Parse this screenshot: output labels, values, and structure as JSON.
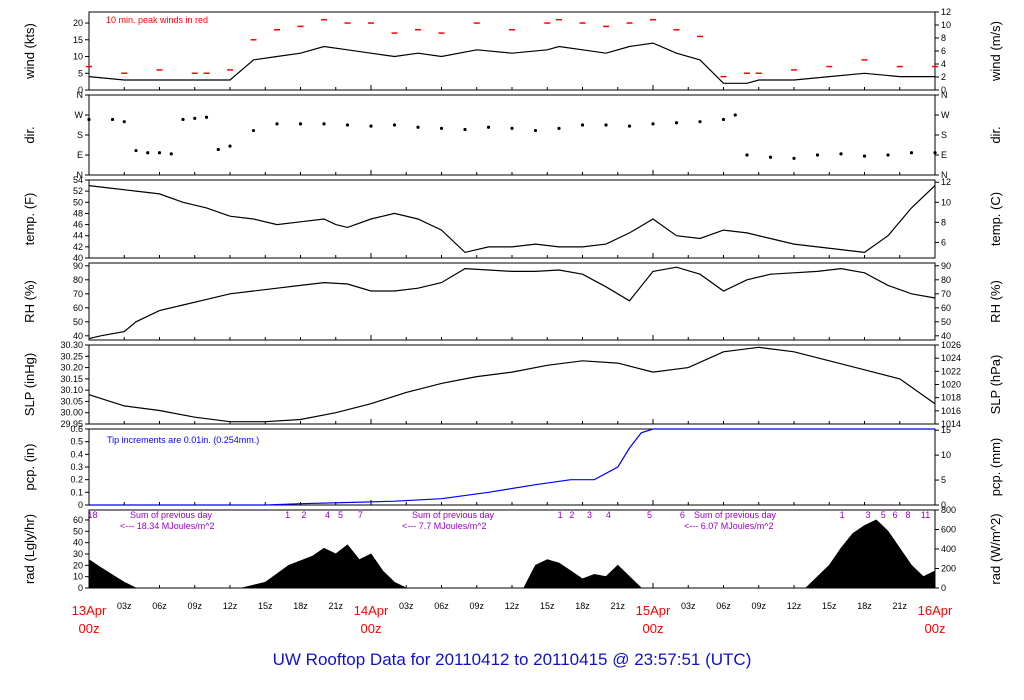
{
  "title": "UW Rooftop Data for 20110412  to  20110415 @ 23:57:51  (UTC)",
  "colors": {
    "line": "#000000",
    "peak": "#ff0000",
    "precip": "#0000ff",
    "annotation": "#9900cc",
    "date": "#ff0000",
    "title": "#1010cc"
  },
  "chart_data": [
    {
      "id": "wind",
      "type": "line",
      "ylabel_left": "wind (kts)",
      "ylabel_right": "wind (m/s)",
      "ylim_left": [
        0,
        23.3
      ],
      "yticks_left": [
        0,
        5,
        10,
        15,
        20
      ],
      "ylim_right": [
        0,
        12
      ],
      "yticks_right": [
        0,
        2,
        4,
        6,
        8,
        10,
        12
      ],
      "annotation": "10 min. peak winds in red",
      "series": [
        {
          "name": "10 min. peak winds",
          "color": "#ff0000",
          "x": [
            0,
            3,
            6,
            9,
            10,
            12,
            14,
            16,
            18,
            20,
            22,
            24,
            26,
            28,
            30,
            33,
            36,
            39,
            40,
            42,
            44,
            46,
            48,
            50,
            52,
            54,
            56,
            57,
            60,
            63,
            66,
            69,
            72
          ],
          "y": [
            7,
            5,
            6,
            5,
            5,
            6,
            15,
            18,
            19,
            21,
            20,
            20,
            17,
            18,
            17,
            20,
            18,
            20,
            21,
            20,
            19,
            20,
            21,
            18,
            16,
            4,
            5,
            5,
            6,
            7,
            9,
            7,
            7
          ]
        },
        {
          "name": "wind",
          "color": "#000000",
          "x": [
            0,
            3,
            6,
            9,
            10,
            12,
            14,
            16,
            18,
            20,
            22,
            24,
            26,
            28,
            30,
            33,
            36,
            39,
            40,
            42,
            44,
            46,
            48,
            50,
            52,
            54,
            56,
            57,
            60,
            63,
            66,
            69,
            72
          ],
          "y": [
            4,
            3,
            3,
            3,
            3,
            3,
            9,
            10,
            11,
            13,
            12,
            11,
            10,
            11,
            10,
            12,
            11,
            12,
            13,
            12,
            11,
            13,
            14,
            11,
            9,
            2,
            2,
            3,
            3,
            4,
            5,
            4,
            4
          ]
        }
      ]
    },
    {
      "id": "dir",
      "type": "scatter",
      "ylabel_left": "dir.",
      "ylabel_right": "dir.",
      "yticks": [
        "N",
        "E",
        "S",
        "W",
        "N"
      ],
      "x": [
        0,
        2,
        3,
        4,
        5,
        6,
        7,
        8,
        9,
        10,
        11,
        12,
        14,
        16,
        18,
        20,
        22,
        24,
        26,
        28,
        30,
        32,
        34,
        36,
        38,
        40,
        42,
        44,
        46,
        48,
        50,
        52,
        54,
        55,
        56,
        58,
        60,
        62,
        64,
        66,
        68,
        70,
        72
      ],
      "y": [
        250,
        250,
        240,
        110,
        100,
        100,
        95,
        250,
        255,
        260,
        115,
        130,
        200,
        230,
        230,
        230,
        225,
        220,
        225,
        215,
        210,
        205,
        215,
        210,
        200,
        210,
        225,
        225,
        220,
        230,
        235,
        240,
        250,
        270,
        90,
        80,
        75,
        90,
        95,
        85,
        90,
        100,
        100
      ]
    },
    {
      "id": "temp",
      "type": "line",
      "ylabel_left": "temp. (F)",
      "ylabel_right": "temp. (C)",
      "ylim_left": [
        40,
        54
      ],
      "yticks_left": [
        40,
        42,
        44,
        46,
        48,
        50,
        52,
        54
      ],
      "ylim_right": [
        4.444,
        12.222
      ],
      "yticks_right": [
        6,
        8,
        10,
        12
      ],
      "x": [
        0,
        2,
        4,
        6,
        8,
        10,
        12,
        14,
        16,
        18,
        20,
        21,
        22,
        24,
        26,
        28,
        30,
        32,
        34,
        36,
        38,
        40,
        42,
        44,
        46,
        48,
        50,
        52,
        54,
        56,
        58,
        60,
        62,
        64,
        66,
        68,
        70,
        72
      ],
      "y": [
        53,
        52.5,
        52,
        51.5,
        50,
        49,
        47.5,
        47,
        46,
        46.5,
        47,
        46,
        45.5,
        47,
        48,
        47,
        45,
        41,
        42,
        42,
        42.5,
        42,
        42,
        42.5,
        44.5,
        47,
        44,
        43.5,
        45,
        44.5,
        43.5,
        42.5,
        42,
        41.5,
        41,
        44,
        49,
        53
      ]
    },
    {
      "id": "rh",
      "type": "line",
      "ylabel_left": "RH (%)",
      "ylabel_right": "RH (%)",
      "ylim": [
        37,
        92
      ],
      "yticks": [
        40,
        50,
        60,
        70,
        80,
        90
      ],
      "x": [
        0,
        1,
        3,
        4,
        6,
        8,
        10,
        12,
        14,
        16,
        18,
        20,
        22,
        24,
        26,
        28,
        30,
        32,
        34,
        36,
        38,
        40,
        42,
        44,
        46,
        48,
        50,
        52,
        54,
        56,
        58,
        60,
        62,
        64,
        66,
        68,
        70,
        72
      ],
      "y": [
        38,
        40,
        43,
        50,
        58,
        62,
        66,
        70,
        72,
        74,
        76,
        78,
        77,
        72,
        72,
        74,
        78,
        88,
        87,
        86,
        86,
        87,
        84,
        75,
        65,
        86,
        89,
        84,
        72,
        80,
        84,
        85,
        86,
        88,
        85,
        76,
        70,
        67
      ]
    },
    {
      "id": "slp",
      "type": "line",
      "ylabel_left": "SLP (inHg)",
      "ylabel_right": "SLP (hPa)",
      "ylim_left": [
        29.95,
        30.3
      ],
      "yticks_left": [
        29.95,
        30.0,
        30.05,
        30.1,
        30.15,
        30.2,
        30.25,
        30.3
      ],
      "ylim_right": [
        1014,
        1026
      ],
      "yticks_right": [
        1014,
        1016,
        1018,
        1020,
        1022,
        1024,
        1026
      ],
      "x": [
        0,
        3,
        6,
        9,
        12,
        15,
        18,
        21,
        24,
        27,
        30,
        33,
        36,
        39,
        42,
        45,
        48,
        51,
        54,
        57,
        60,
        63,
        66,
        69,
        72
      ],
      "y": [
        30.08,
        30.03,
        30.01,
        29.98,
        29.96,
        29.96,
        29.97,
        30.0,
        30.04,
        30.09,
        30.13,
        30.16,
        30.18,
        30.21,
        30.23,
        30.22,
        30.18,
        30.2,
        30.27,
        30.29,
        30.27,
        30.23,
        30.19,
        30.15,
        30.04
      ]
    },
    {
      "id": "pcp",
      "type": "line",
      "ylabel_left": "pcp. (in)",
      "ylabel_right": "pcp. (mm)",
      "ylim_left": [
        0,
        0.6
      ],
      "yticks_left": [
        0,
        0.1,
        0.2,
        0.3,
        0.4,
        0.5,
        0.6
      ],
      "ylim_right": [
        0,
        15.24
      ],
      "yticks_right": [
        0,
        5,
        10,
        15
      ],
      "annotation": "Tip increments are 0.01in. (0.254mm.)",
      "x": [
        0,
        15,
        18,
        22,
        26,
        30,
        34,
        38,
        41,
        43,
        45,
        46,
        47,
        48,
        72
      ],
      "y": [
        0,
        0,
        0.01,
        0.02,
        0.03,
        0.05,
        0.1,
        0.16,
        0.2,
        0.2,
        0.3,
        0.45,
        0.57,
        0.6,
        0.6
      ]
    },
    {
      "id": "rad",
      "type": "area",
      "ylabel_left": "rad (Lgly/hr)",
      "ylabel_right": "rad (W/m^2)",
      "ylim_left": [
        0,
        68.8
      ],
      "yticks_left": [
        0,
        10,
        20,
        30,
        40,
        50,
        60
      ],
      "ylim_right": [
        0,
        800
      ],
      "yticks_right": [
        0,
        200,
        400,
        600,
        800
      ],
      "x": [
        0,
        1,
        3,
        4,
        13,
        15,
        17,
        19,
        20,
        21,
        22,
        23,
        24,
        25,
        26,
        27,
        37,
        38,
        39,
        40,
        41,
        42,
        43,
        44,
        45,
        46,
        47,
        61,
        63,
        64,
        65,
        66,
        67,
        68,
        69,
        70,
        71,
        72
      ],
      "y": [
        25,
        18,
        5,
        0,
        0,
        5,
        20,
        28,
        35,
        30,
        38,
        25,
        30,
        15,
        5,
        0,
        0,
        20,
        25,
        22,
        15,
        8,
        12,
        10,
        20,
        10,
        0,
        0,
        20,
        35,
        48,
        55,
        60,
        50,
        35,
        20,
        10,
        15
      ]
    }
  ],
  "pcp_day_labels": [
    {
      "x": 0.3,
      "text": "18"
    },
    {
      "x": 16.9,
      "text": "1"
    },
    {
      "x": 18.3,
      "text": "2"
    },
    {
      "x": 20.3,
      "text": "4"
    },
    {
      "x": 21.4,
      "text": "5"
    },
    {
      "x": 23.1,
      "text": "7"
    },
    {
      "x": 40.1,
      "text": "1"
    },
    {
      "x": 41.1,
      "text": "2"
    },
    {
      "x": 42.6,
      "text": "3"
    },
    {
      "x": 44.2,
      "text": "4"
    },
    {
      "x": 47.7,
      "text": "5"
    },
    {
      "x": 50.5,
      "text": "6"
    },
    {
      "x": 64.1,
      "text": "1"
    },
    {
      "x": 66.3,
      "text": "3"
    },
    {
      "x": 67.6,
      "text": "5"
    },
    {
      "x": 68.6,
      "text": "6"
    },
    {
      "x": 69.7,
      "text": "8"
    },
    {
      "x": 71.2,
      "text": "11"
    }
  ],
  "rad_annotations": [
    {
      "x": 2.3,
      "line1": "Sum of previous day",
      "line2": "<--- 18.34 MJoules/m^2"
    },
    {
      "x": 26.3,
      "line1": "Sum of previous day",
      "line2": "<--- 7.7 MJoules/m^2"
    },
    {
      "x": 50.3,
      "line1": "Sum of previous day",
      "line2": "<--- 6.07 MJoules/m^2"
    }
  ],
  "x_axis": {
    "hour_ticks": [
      "03z",
      "06z",
      "09z",
      "12z",
      "15z",
      "18z",
      "21z",
      "03z",
      "06z",
      "09z",
      "12z",
      "15z",
      "18z",
      "21z",
      "03z",
      "06z",
      "09z",
      "12z",
      "15z",
      "18z",
      "21z"
    ],
    "hour_tick_x": [
      3,
      6,
      9,
      12,
      15,
      18,
      21,
      27,
      30,
      33,
      36,
      39,
      42,
      45,
      51,
      54,
      57,
      60,
      63,
      66,
      69
    ],
    "date_labels": [
      {
        "x": 0,
        "date": "13Apr",
        "time": "00z"
      },
      {
        "x": 24,
        "date": "14Apr",
        "time": "00z"
      },
      {
        "x": 48,
        "date": "15Apr",
        "time": "00z"
      },
      {
        "x": 72,
        "date": "16Apr",
        "time": "00z"
      }
    ]
  }
}
